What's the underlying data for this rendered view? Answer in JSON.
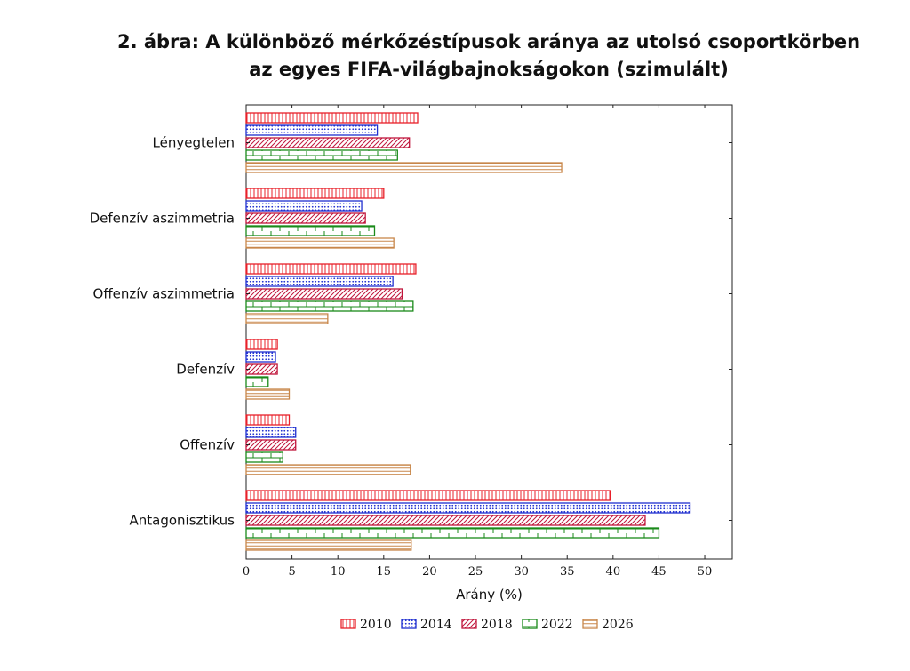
{
  "title": {
    "line1": "2. ábra: A különböző mérkőzéstípusok aránya az utolsó csoportkörben",
    "line2": "az egyes FIFA-világbajnokságokon (szimulált)"
  },
  "chart_data": {
    "type": "bar",
    "orientation": "horizontal",
    "categories": [
      "Lényegtelen",
      "Defenzív aszimmetria",
      "Offenzív aszimmetria",
      "Defenzív",
      "Offenzív",
      "Antagonisztikus"
    ],
    "series": [
      {
        "name": "2010",
        "color": "#e8202a",
        "pattern": "vertical-lines",
        "values": [
          18.7,
          15.0,
          18.5,
          3.4,
          4.7,
          39.7
        ]
      },
      {
        "name": "2014",
        "color": "#1f2fd0",
        "pattern": "dots",
        "values": [
          14.3,
          12.6,
          16.0,
          3.2,
          5.4,
          48.4
        ]
      },
      {
        "name": "2018",
        "color": "#c0163c",
        "pattern": "diagonal-lines",
        "values": [
          17.8,
          13.0,
          17.0,
          3.4,
          5.4,
          43.5
        ]
      },
      {
        "name": "2022",
        "color": "#1a8a1a",
        "pattern": "bricks",
        "values": [
          16.5,
          14.0,
          18.2,
          2.4,
          4.0,
          45.0
        ]
      },
      {
        "name": "2026",
        "color": "#c8874a",
        "pattern": "horizontal-lines",
        "values": [
          34.4,
          16.1,
          8.9,
          4.7,
          17.9,
          18.0
        ]
      }
    ],
    "xlabel": "Arány (%)",
    "ylabel": "",
    "xlim": [
      0,
      53
    ],
    "xticks": [
      0,
      5,
      10,
      15,
      20,
      25,
      30,
      35,
      40,
      45,
      50
    ],
    "grid": false,
    "legend_position": "bottom"
  }
}
